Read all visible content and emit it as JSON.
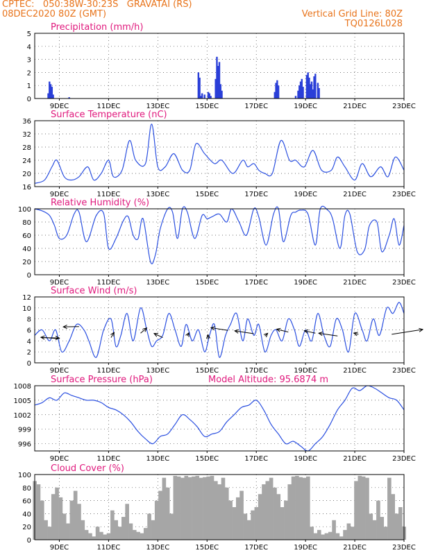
{
  "header": {
    "line1_left": "CPTEC:   050:38W-30:23S   GRAVATAI (RS)",
    "line2_left": "08DEC2020 80Z (GMT)",
    "line2_right": "Vertical Grid Line: 80Z",
    "line3_right": "TQ0126L028"
  },
  "colors": {
    "header": "#e8731a",
    "title": "#e0197d",
    "line": "#2a4fe0",
    "bar": "#2a3fd8",
    "cloud": "#a6a6a6"
  },
  "x_ticks": [
    "9DEC",
    "11DEC",
    "13DEC",
    "15DEC",
    "17DEC",
    "19DEC",
    "21DEC",
    "23DEC"
  ],
  "chart_data": [
    {
      "type": "bar",
      "title": "Precipitation (mm/h)",
      "ylim": [
        0,
        5
      ],
      "yticks": [
        "0",
        "1",
        "2",
        "3",
        "4",
        "5"
      ],
      "x": [
        8.55,
        8.6,
        8.65,
        8.7,
        8.75,
        9.4,
        14.65,
        14.7,
        14.75,
        14.8,
        14.9,
        15.05,
        15.1,
        15.15,
        15.35,
        15.4,
        15.45,
        15.5,
        15.55,
        15.6,
        17.75,
        17.8,
        17.85,
        17.9,
        18.6,
        18.7,
        18.75,
        18.8,
        18.85,
        18.9,
        19.05,
        19.1,
        19.15,
        19.2,
        19.25,
        19.3,
        19.35,
        19.4,
        19.5,
        19.55
      ],
      "values": [
        0.4,
        1.3,
        1.1,
        0.9,
        0.3,
        0.1,
        2.0,
        1.6,
        0.2,
        0.4,
        0.3,
        0.5,
        0.4,
        0.2,
        1.5,
        3.2,
        2.5,
        2.8,
        1.1,
        0.6,
        0.5,
        1.2,
        1.4,
        1.0,
        0.2,
        0.6,
        1.0,
        1.3,
        1.5,
        0.9,
        1.8,
        2.0,
        1.6,
        1.1,
        1.3,
        0.7,
        1.7,
        1.9,
        1.2,
        0.8
      ]
    },
    {
      "type": "line",
      "title": "Surface Temperature (nC)",
      "ylim": [
        16,
        36
      ],
      "yticks": [
        "16",
        "20",
        "24",
        "28",
        "32",
        "36"
      ],
      "x": [
        8.0,
        8.4,
        8.7,
        8.9,
        9.2,
        9.5,
        9.8,
        10.15,
        10.4,
        10.7,
        11.0,
        11.2,
        11.55,
        11.85,
        12.1,
        12.5,
        12.75,
        13.0,
        13.3,
        13.65,
        14.0,
        14.3,
        14.55,
        14.9,
        15.3,
        15.6,
        16.05,
        16.45,
        16.65,
        16.9,
        17.1,
        17.35,
        17.65,
        18.0,
        18.35,
        18.6,
        18.95,
        19.3,
        19.65,
        20.05,
        20.3,
        20.6,
        21.0,
        21.3,
        21.65,
        22.05,
        22.35,
        22.65,
        23.0
      ],
      "values": [
        17,
        18,
        22,
        24,
        19,
        18,
        19,
        22,
        18,
        20,
        24,
        19,
        21,
        30,
        24,
        23,
        35,
        22,
        22,
        26,
        21,
        21,
        29,
        26,
        23,
        24,
        20,
        24,
        22,
        23,
        21,
        20,
        20,
        30,
        24,
        24,
        22,
        27,
        21,
        21,
        25,
        22,
        18,
        23,
        19,
        22,
        19,
        25,
        21
      ]
    },
    {
      "type": "line",
      "title": "Relative Humidity (%)",
      "ylim": [
        0,
        100
      ],
      "yticks": [
        "0",
        "20",
        "40",
        "60",
        "80",
        "100"
      ],
      "x": [
        8.0,
        8.3,
        8.6,
        8.8,
        9.0,
        9.3,
        9.6,
        9.8,
        10.1,
        10.5,
        10.8,
        11.0,
        11.3,
        11.6,
        11.8,
        12.0,
        12.2,
        12.4,
        12.7,
        12.9,
        13.1,
        13.4,
        13.6,
        13.8,
        14.0,
        14.2,
        14.5,
        14.8,
        15.0,
        15.2,
        15.5,
        15.8,
        16.0,
        16.3,
        16.6,
        16.9,
        17.1,
        17.4,
        17.7,
        17.9,
        18.1,
        18.4,
        18.6,
        18.8,
        19.1,
        19.4,
        19.6,
        19.9,
        20.1,
        20.4,
        20.6,
        20.8,
        21.1,
        21.4,
        21.6,
        21.9,
        22.1,
        22.4,
        22.6,
        22.8,
        23.0
      ],
      "values": [
        100,
        97,
        90,
        75,
        55,
        60,
        92,
        95,
        50,
        90,
        93,
        40,
        55,
        82,
        88,
        60,
        55,
        85,
        20,
        30,
        70,
        100,
        95,
        55,
        100,
        95,
        55,
        90,
        85,
        88,
        92,
        80,
        100,
        80,
        60,
        100,
        88,
        45,
        92,
        100,
        50,
        90,
        95,
        98,
        92,
        45,
        100,
        98,
        85,
        40,
        90,
        92,
        35,
        38,
        75,
        80,
        35,
        60,
        85,
        45,
        75
      ]
    },
    {
      "type": "line",
      "title": "Surface Wind (m/s)",
      "ylim": [
        0,
        12
      ],
      "yticks": [
        "0",
        "2",
        "4",
        "6",
        "8",
        "10",
        "12"
      ],
      "x": [
        8.0,
        8.3,
        8.6,
        8.85,
        9.1,
        9.4,
        9.7,
        10.0,
        10.2,
        10.5,
        10.8,
        11.1,
        11.3,
        11.5,
        11.75,
        12.0,
        12.3,
        12.55,
        12.75,
        12.95,
        13.2,
        13.45,
        13.7,
        13.95,
        14.15,
        14.4,
        14.65,
        14.9,
        15.1,
        15.3,
        15.5,
        15.75,
        15.95,
        16.2,
        16.45,
        16.65,
        16.9,
        17.1,
        17.35,
        17.6,
        17.8,
        18.05,
        18.3,
        18.55,
        18.75,
        19.0,
        19.25,
        19.5,
        19.75,
        20.0,
        20.25,
        20.5,
        20.75,
        21.0,
        21.3,
        21.5,
        21.75,
        22.0,
        22.3,
        22.55,
        22.8,
        23.0
      ],
      "values": [
        5,
        6,
        4,
        6,
        2,
        4,
        7,
        6,
        4,
        1,
        6,
        8,
        3,
        5,
        9,
        4,
        10,
        6,
        3,
        4,
        5,
        9,
        6,
        3,
        7,
        4,
        6,
        2,
        5,
        7,
        1,
        5,
        7,
        9,
        4,
        8,
        5,
        7,
        2,
        5,
        6,
        4,
        8,
        6,
        3,
        6,
        4,
        9,
        5,
        3,
        8,
        6,
        2,
        9,
        6,
        4,
        8,
        5,
        10,
        9,
        11,
        9
      ],
      "arrows": [
        [
          8.3,
          4.6,
          5.6,
          -0.7
        ],
        [
          8.95,
          4.4,
          -5.6,
          2.0
        ],
        [
          9.8,
          6.6,
          -5.1,
          -0.4
        ],
        [
          11.1,
          4.6,
          1.0,
          7.6
        ],
        [
          12.3,
          5.4,
          2.0,
          7.5
        ],
        [
          13.2,
          4.6,
          -2.8,
          6.0
        ],
        [
          14.2,
          4.9,
          0.5,
          4.5
        ],
        [
          15.05,
          4.3,
          -0.1,
          6.6
        ],
        [
          15.85,
          5.9,
          -5.5,
          3.9
        ],
        [
          16.9,
          5.3,
          -6.2,
          4.2
        ],
        [
          17.35,
          4.9,
          0.9,
          3.8
        ],
        [
          18.3,
          5.6,
          -3.8,
          4.2
        ],
        [
          19.4,
          5.4,
          -3.6,
          3.6
        ],
        [
          20.3,
          4.9,
          -6.1,
          3.9
        ],
        [
          21.15,
          5.2,
          -1.5,
          1.7
        ],
        [
          22.5,
          5.2,
          10.1,
          7.0
        ]
      ]
    },
    {
      "type": "line",
      "title": "Surface Pressure (hPa)",
      "annotation": "Model Altitude: 95.6874 m",
      "ylim": [
        994.5,
        1008
      ],
      "yticks": [
        "996",
        "999",
        "1002",
        "1005",
        "1008"
      ],
      "x": [
        8.0,
        8.3,
        8.6,
        8.9,
        9.2,
        9.5,
        9.8,
        10.1,
        10.4,
        10.7,
        11.0,
        11.3,
        11.6,
        11.9,
        12.2,
        12.5,
        12.8,
        13.1,
        13.4,
        13.7,
        14.0,
        14.3,
        14.6,
        14.9,
        15.2,
        15.5,
        15.8,
        16.1,
        16.4,
        16.7,
        17.0,
        17.3,
        17.6,
        17.9,
        18.2,
        18.5,
        18.8,
        19.1,
        19.4,
        19.7,
        20.0,
        20.3,
        20.6,
        20.9,
        21.2,
        21.5,
        21.8,
        22.1,
        22.4,
        22.7,
        23.0
      ],
      "values": [
        1004,
        1004.5,
        1005.5,
        1005,
        1006.5,
        1006,
        1005.5,
        1005,
        1005,
        1004.5,
        1003.5,
        1003,
        1002,
        1000.5,
        998.5,
        997,
        996,
        997.5,
        998,
        1000,
        1002,
        1001,
        999.5,
        997.5,
        998,
        998.5,
        1000.5,
        1002,
        1003.5,
        1004,
        1005,
        1003,
        1000,
        998,
        996,
        996.5,
        995.5,
        994.5,
        996,
        997.5,
        1000,
        1003,
        1005,
        1007.5,
        1007,
        1008,
        1007.5,
        1006.5,
        1005.5,
        1005,
        1003
      ]
    },
    {
      "type": "area",
      "title": "Cloud Cover (%)",
      "ylim": [
        0,
        100
      ],
      "yticks": [
        "0",
        "20",
        "40",
        "60",
        "80",
        "100"
      ],
      "x": [
        8.0,
        8.15,
        8.3,
        8.45,
        8.6,
        8.75,
        8.9,
        9.05,
        9.2,
        9.35,
        9.5,
        9.65,
        9.8,
        9.95,
        10.1,
        10.25,
        10.4,
        10.55,
        10.7,
        10.85,
        11.0,
        11.15,
        11.3,
        11.45,
        11.6,
        11.75,
        11.9,
        12.05,
        12.2,
        12.35,
        12.5,
        12.65,
        12.8,
        12.95,
        13.1,
        13.25,
        13.4,
        13.55,
        13.7,
        13.85,
        14.0,
        14.15,
        14.3,
        14.45,
        14.6,
        14.75,
        14.9,
        15.05,
        15.2,
        15.35,
        15.5,
        15.65,
        15.8,
        15.95,
        16.1,
        16.25,
        16.4,
        16.55,
        16.7,
        16.85,
        17.0,
        17.15,
        17.3,
        17.45,
        17.6,
        17.75,
        17.9,
        18.05,
        18.2,
        18.35,
        18.5,
        18.65,
        18.8,
        18.95,
        19.1,
        19.25,
        19.4,
        19.55,
        19.7,
        19.85,
        20.0,
        20.15,
        20.3,
        20.45,
        20.6,
        20.75,
        20.9,
        21.05,
        21.2,
        21.35,
        21.5,
        21.65,
        21.8,
        21.95,
        22.1,
        22.25,
        22.4,
        22.55,
        22.7,
        22.85,
        23.0
      ],
      "values": [
        90,
        85,
        60,
        30,
        20,
        70,
        80,
        65,
        40,
        25,
        60,
        75,
        55,
        30,
        15,
        10,
        5,
        20,
        12,
        8,
        10,
        45,
        30,
        20,
        35,
        55,
        25,
        15,
        12,
        10,
        18,
        40,
        30,
        60,
        75,
        95,
        80,
        40,
        98,
        97,
        95,
        98,
        96,
        97,
        98,
        95,
        96,
        97,
        98,
        90,
        85,
        95,
        80,
        60,
        50,
        65,
        75,
        40,
        30,
        45,
        50,
        70,
        85,
        90,
        95,
        80,
        70,
        50,
        60,
        85,
        97,
        98,
        96,
        95,
        97,
        20,
        10,
        15,
        8,
        10,
        12,
        30,
        10,
        5,
        15,
        25,
        20,
        90,
        98,
        97,
        95,
        40,
        30,
        60,
        35,
        20,
        95,
        70,
        40,
        50,
        20
      ]
    }
  ]
}
